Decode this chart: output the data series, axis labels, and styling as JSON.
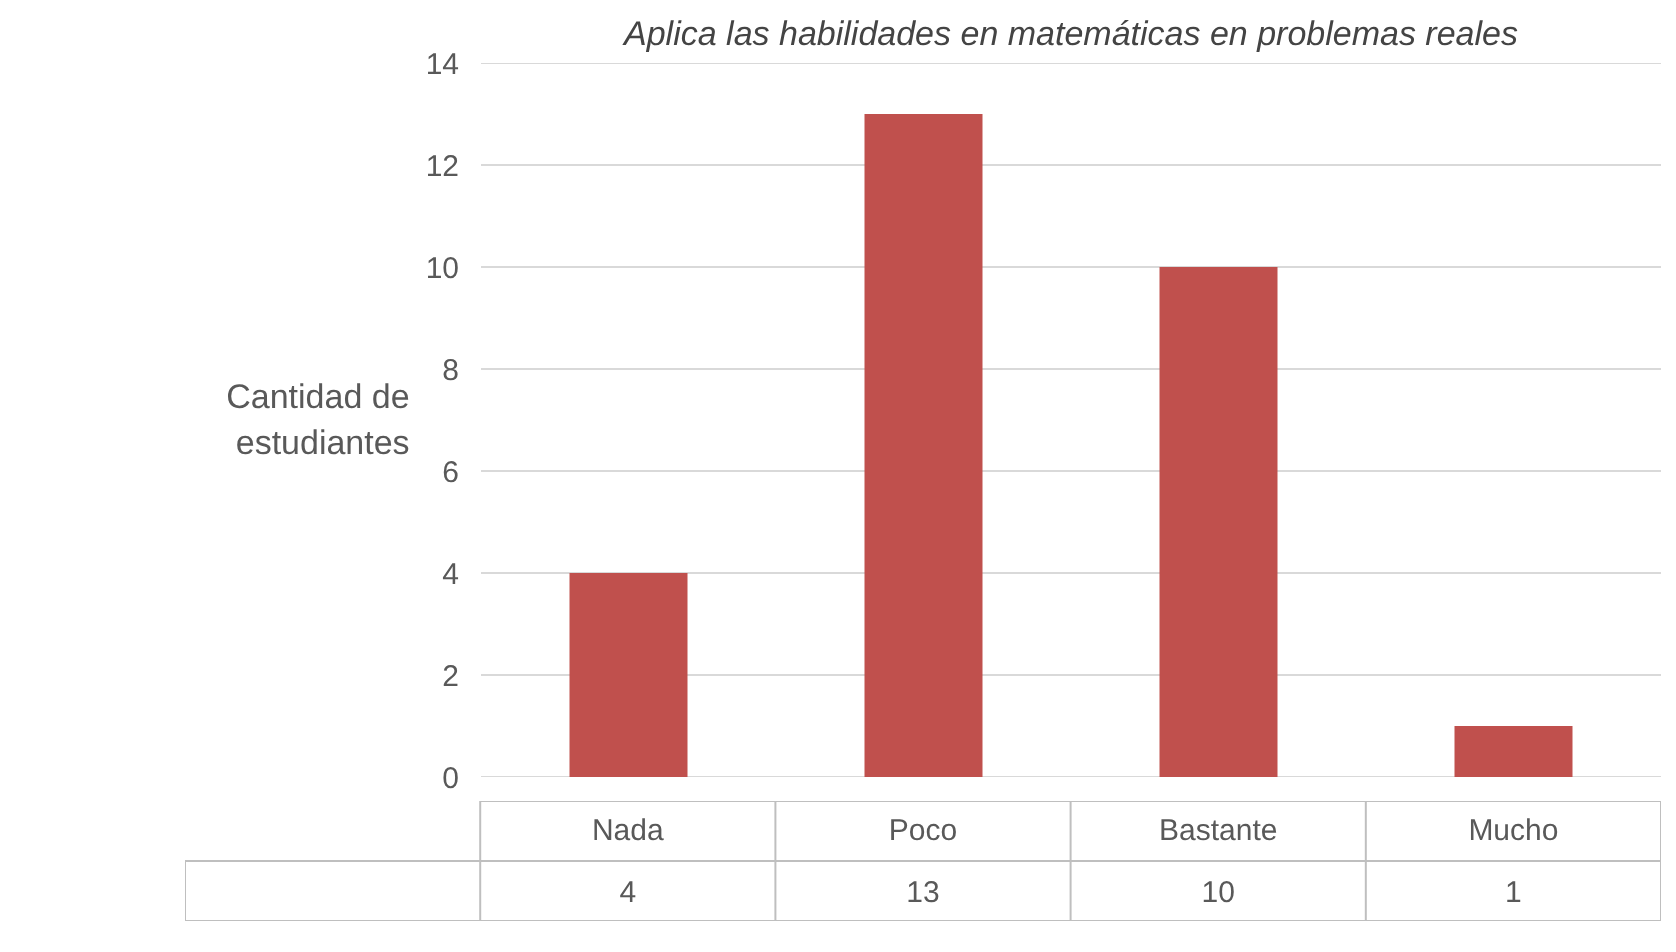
{
  "chart_data": {
    "type": "bar",
    "title": "Aplica las habilidades en matemáticas en problemas reales",
    "ylabel": "Cantidad de estudiantes",
    "categories": [
      "Nada",
      "Poco",
      "Bastante",
      "Mucho"
    ],
    "series": [
      {
        "color": "#c0504d",
        "values": [
          4,
          13,
          10,
          1
        ]
      }
    ],
    "ylim": [
      0,
      14
    ],
    "yticks": [
      0,
      2,
      4,
      6,
      8,
      10,
      12,
      14
    ],
    "grid": "y",
    "data_labels": true
  }
}
